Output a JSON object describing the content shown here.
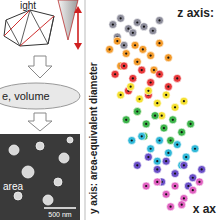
{
  "diagram": {
    "labels": {
      "light": "ight",
      "process": "e, volume",
      "area": "area",
      "scale_bar": "500 nm"
    }
  },
  "chart_data": {
    "type": "scatter",
    "x_label": "x ax",
    "y_label": "y axis: area-equivalent diameter",
    "z_label": "z axis:",
    "xlim": [
      0,
      100
    ],
    "ylim": [
      0,
      100
    ],
    "tick_labels": false,
    "grid": false,
    "marker": "circle",
    "series": [
      {
        "color": "#8c8c9a",
        "x": [
          8,
          15,
          22,
          30,
          12,
          26,
          36,
          44,
          18,
          50
        ],
        "values": [
          92,
          95,
          90,
          93,
          86,
          88,
          91,
          89,
          82,
          94
        ]
      },
      {
        "color": "#f39a2a",
        "x": [
          5,
          12,
          20,
          28,
          35,
          42,
          50,
          15,
          30,
          45,
          58
        ],
        "values": [
          80,
          84,
          78,
          82,
          80,
          77,
          83,
          72,
          74,
          70,
          76
        ]
      },
      {
        "color": "#e8383a",
        "x": [
          10,
          18,
          26,
          34,
          42,
          50,
          58,
          66,
          22,
          40
        ],
        "values": [
          68,
          72,
          66,
          70,
          64,
          68,
          62,
          66,
          60,
          58
        ]
      },
      {
        "color": "#f5e030",
        "x": [
          15,
          24,
          32,
          40,
          48,
          56,
          64,
          72,
          30,
          52
        ],
        "values": [
          58,
          62,
          56,
          60,
          54,
          58,
          52,
          55,
          50,
          48
        ]
      },
      {
        "color": "#3cb44a",
        "x": [
          20,
          30,
          38,
          46,
          54,
          62,
          70,
          78,
          36,
          60
        ],
        "values": [
          46,
          50,
          44,
          48,
          42,
          46,
          40,
          44,
          38,
          36
        ]
      },
      {
        "color": "#30b8d8",
        "x": [
          25,
          34,
          42,
          50,
          58,
          66,
          74,
          82,
          48,
          70
        ],
        "values": [
          36,
          38,
          32,
          36,
          30,
          34,
          28,
          32,
          26,
          24
        ]
      },
      {
        "color": "#6a4fc8",
        "x": [
          30,
          40,
          48,
          56,
          64,
          72,
          80,
          88,
          52,
          76
        ],
        "values": [
          24,
          28,
          22,
          26,
          20,
          24,
          18,
          22,
          16,
          14
        ]
      },
      {
        "color": "#e060c0",
        "x": [
          38,
          48,
          56,
          64,
          72,
          80,
          86,
          60,
          70
        ],
        "values": [
          14,
          16,
          10,
          14,
          8,
          12,
          16,
          4,
          5
        ]
      }
    ]
  }
}
